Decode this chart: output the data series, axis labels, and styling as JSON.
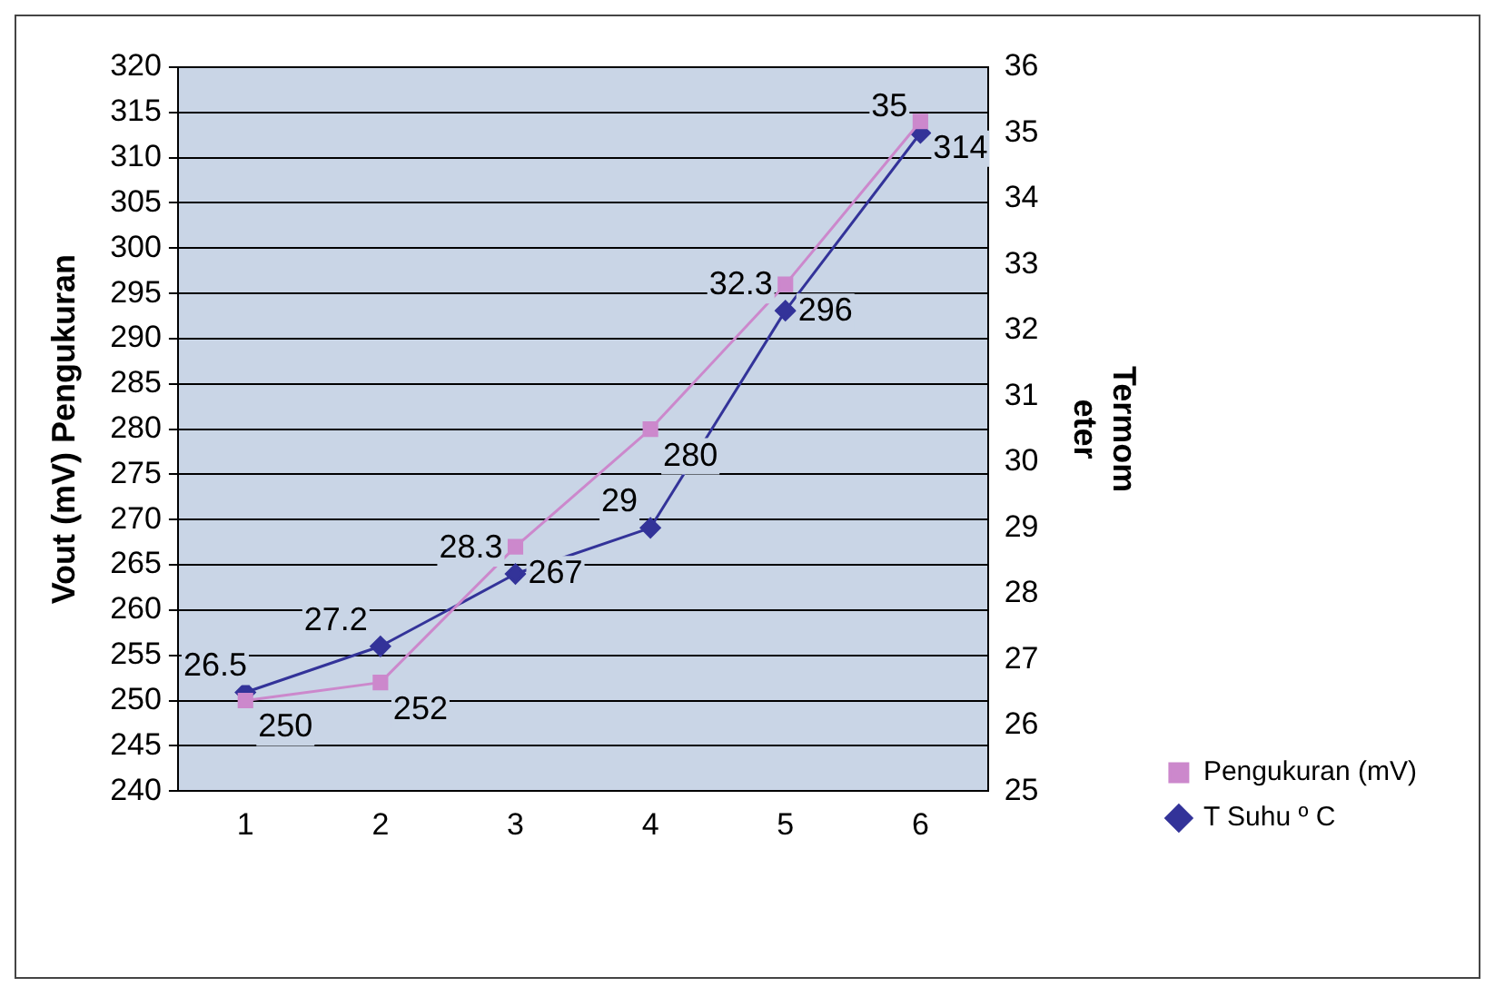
{
  "chart_data": {
    "type": "line",
    "categories": [
      "1",
      "2",
      "3",
      "4",
      "5",
      "6"
    ],
    "ylabel": "Vout (mV) Pengukuran",
    "y2label": "Termom eter",
    "series": [
      {
        "name": "Pengukuran (mV)",
        "color": "#cc88cc",
        "marker": "square",
        "values": [
          250,
          252,
          267,
          280,
          296,
          314
        ]
      },
      {
        "name": "T Suhu º C",
        "color": "#333399",
        "marker": "diamond",
        "axis": "y2",
        "values": [
          26.5,
          27.2,
          28.3,
          29,
          32.3,
          35
        ]
      }
    ],
    "ylim": [
      240,
      320
    ],
    "yticks": [
      240,
      245,
      250,
      255,
      260,
      265,
      270,
      275,
      280,
      285,
      290,
      295,
      300,
      305,
      310,
      315,
      320
    ],
    "y2lim": [
      25,
      36
    ],
    "y2ticks": [
      25,
      26,
      27,
      28,
      29,
      30,
      31,
      32,
      33,
      34,
      35,
      36
    ],
    "grid": "y",
    "legend": "right",
    "data_labels": true
  }
}
